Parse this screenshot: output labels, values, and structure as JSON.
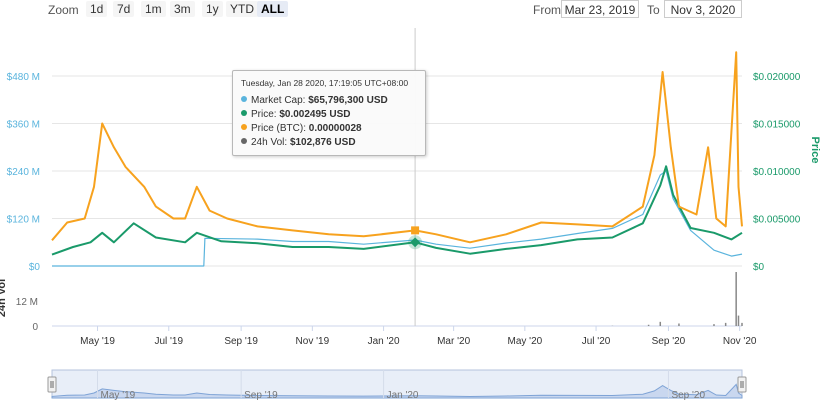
{
  "toolbar": {
    "zoom_label": "Zoom",
    "zoom_buttons": [
      "1d",
      "7d",
      "1m",
      "3m",
      "1y",
      "YTD",
      "ALL"
    ],
    "active_zoom": "ALL",
    "from_label": "From",
    "from_value": "Mar 23, 2019",
    "to_label": "To",
    "to_value": "Nov 3, 2020"
  },
  "tooltip": {
    "date": "Tuesday, Jan 28 2020, 17:19:05 UTC+08:00",
    "rows": [
      {
        "label": "Market Cap:",
        "value": "$65,796,300 USD",
        "color": "#5ab4dd"
      },
      {
        "label": "Price:",
        "value": "$0.002495 USD",
        "color": "#1a9a6a"
      },
      {
        "label": "Price (BTC):",
        "value": "0.00000028",
        "color": "#f7a21e"
      },
      {
        "label": "24h Vol:",
        "value": "$102,876 USD",
        "color": "#666666"
      }
    ]
  },
  "colors": {
    "market_cap": "#5ab4dd",
    "price_usd": "#1a9a6a",
    "price_btc": "#f7a21e",
    "volume": "#888888",
    "right_axis": "#1a9a6a",
    "left_axis": "#5ab4dd"
  },
  "chart_data": {
    "type": "line",
    "x_tick_labels": [
      "May '19",
      "Jul '19",
      "Sep '19",
      "Nov '19",
      "Jan '20",
      "Mar '20",
      "May '20",
      "Jul '20",
      "Sep '20",
      "Nov '20"
    ],
    "x_ticks": [
      "2019-05-01",
      "2019-07-01",
      "2019-09-01",
      "2019-11-01",
      "2020-01-01",
      "2020-03-01",
      "2020-05-01",
      "2020-07-01",
      "2020-09-01",
      "2020-11-01"
    ],
    "x_range": [
      "2019-03-23",
      "2020-11-03"
    ],
    "left_axis": {
      "label": "",
      "ticks": [
        "$0",
        "$120 M",
        "$240 M",
        "$360 M",
        "$480 M"
      ],
      "range": [
        0,
        480000000
      ]
    },
    "right_axis": {
      "label": "Price",
      "ticks": [
        "$0",
        "$0.005000",
        "$0.010000",
        "$0.015000",
        "$0.020000"
      ],
      "range": [
        0,
        0.02
      ]
    },
    "volume_axis": {
      "label": "24h Vol",
      "ticks": [
        "0",
        "12 M"
      ],
      "range": [
        0,
        24000000
      ]
    },
    "series": [
      {
        "name": "Market Cap",
        "axis": "left",
        "points": [
          [
            "2019-03-23",
            0
          ],
          [
            "2019-07-31",
            0
          ],
          [
            "2019-08-01",
            70000000
          ],
          [
            "2019-09-15",
            68000000
          ],
          [
            "2019-10-15",
            62000000
          ],
          [
            "2019-11-15",
            62000000
          ],
          [
            "2019-12-15",
            55000000
          ],
          [
            "2020-01-28",
            65800000
          ],
          [
            "2020-02-15",
            55000000
          ],
          [
            "2020-03-15",
            45000000
          ],
          [
            "2020-04-15",
            58000000
          ],
          [
            "2020-05-15",
            68000000
          ],
          [
            "2020-06-15",
            82000000
          ],
          [
            "2020-07-15",
            95000000
          ],
          [
            "2020-08-10",
            130000000
          ],
          [
            "2020-08-25",
            230000000
          ],
          [
            "2020-08-30",
            240000000
          ],
          [
            "2020-09-05",
            170000000
          ],
          [
            "2020-09-20",
            90000000
          ],
          [
            "2020-10-10",
            40000000
          ],
          [
            "2020-10-25",
            25000000
          ],
          [
            "2020-11-03",
            30000000
          ]
        ]
      },
      {
        "name": "Price",
        "axis": "right",
        "points": [
          [
            "2019-03-23",
            0.0012
          ],
          [
            "2019-04-10",
            0.002
          ],
          [
            "2019-04-25",
            0.0025
          ],
          [
            "2019-05-05",
            0.0035
          ],
          [
            "2019-05-15",
            0.0025
          ],
          [
            "2019-06-01",
            0.0045
          ],
          [
            "2019-06-20",
            0.003
          ],
          [
            "2019-07-15",
            0.0025
          ],
          [
            "2019-07-25",
            0.0035
          ],
          [
            "2019-08-15",
            0.0026
          ],
          [
            "2019-09-15",
            0.0024
          ],
          [
            "2019-10-15",
            0.002
          ],
          [
            "2019-11-15",
            0.002
          ],
          [
            "2019-12-15",
            0.0018
          ],
          [
            "2020-01-28",
            0.002495
          ],
          [
            "2020-02-15",
            0.0019
          ],
          [
            "2020-03-15",
            0.0013
          ],
          [
            "2020-04-15",
            0.0018
          ],
          [
            "2020-05-15",
            0.0022
          ],
          [
            "2020-06-15",
            0.0028
          ],
          [
            "2020-07-15",
            0.003
          ],
          [
            "2020-08-10",
            0.0045
          ],
          [
            "2020-08-25",
            0.0085
          ],
          [
            "2020-08-30",
            0.0105
          ],
          [
            "2020-09-05",
            0.0075
          ],
          [
            "2020-09-20",
            0.004
          ],
          [
            "2020-10-10",
            0.0035
          ],
          [
            "2020-10-25",
            0.0028
          ],
          [
            "2020-11-03",
            0.0035
          ]
        ]
      },
      {
        "name": "Price (BTC)",
        "axis": "left",
        "points": [
          [
            "2019-03-23",
            65000000
          ],
          [
            "2019-04-05",
            110000000
          ],
          [
            "2019-04-20",
            120000000
          ],
          [
            "2019-04-28",
            200000000
          ],
          [
            "2019-05-05",
            360000000
          ],
          [
            "2019-05-15",
            300000000
          ],
          [
            "2019-05-25",
            250000000
          ],
          [
            "2019-06-10",
            200000000
          ],
          [
            "2019-06-20",
            150000000
          ],
          [
            "2019-07-05",
            120000000
          ],
          [
            "2019-07-15",
            120000000
          ],
          [
            "2019-07-25",
            200000000
          ],
          [
            "2019-08-05",
            140000000
          ],
          [
            "2019-08-20",
            120000000
          ],
          [
            "2019-09-15",
            100000000
          ],
          [
            "2019-10-15",
            90000000
          ],
          [
            "2019-11-15",
            80000000
          ],
          [
            "2019-12-15",
            75000000
          ],
          [
            "2020-01-28",
            90000000
          ],
          [
            "2020-02-15",
            80000000
          ],
          [
            "2020-03-15",
            60000000
          ],
          [
            "2020-04-15",
            80000000
          ],
          [
            "2020-05-15",
            110000000
          ],
          [
            "2020-06-15",
            105000000
          ],
          [
            "2020-07-15",
            100000000
          ],
          [
            "2020-08-10",
            150000000
          ],
          [
            "2020-08-20",
            280000000
          ],
          [
            "2020-08-27",
            490000000
          ],
          [
            "2020-09-03",
            300000000
          ],
          [
            "2020-09-10",
            150000000
          ],
          [
            "2020-09-25",
            130000000
          ],
          [
            "2020-10-05",
            300000000
          ],
          [
            "2020-10-12",
            120000000
          ],
          [
            "2020-10-20",
            100000000
          ],
          [
            "2020-10-29",
            540000000
          ],
          [
            "2020-10-31",
            200000000
          ],
          [
            "2020-11-03",
            100000000
          ]
        ]
      },
      {
        "name": "24h Vol",
        "axis": "volume",
        "points": [
          [
            "2019-03-23",
            0
          ],
          [
            "2020-07-15",
            100000
          ],
          [
            "2020-08-15",
            600000
          ],
          [
            "2020-08-25",
            2000000
          ],
          [
            "2020-09-10",
            1200000
          ],
          [
            "2020-10-10",
            900000
          ],
          [
            "2020-10-20",
            1500000
          ],
          [
            "2020-10-29",
            26000000
          ],
          [
            "2020-10-31",
            5000000
          ],
          [
            "2020-11-03",
            1500000
          ]
        ]
      }
    ],
    "hover_date": "2020-01-28",
    "navigator_tick_labels": [
      "May '19",
      "Sep '19",
      "Jan '20",
      "Sep '20"
    ],
    "navigator_ticks": [
      "2019-05-01",
      "2019-09-01",
      "2020-01-01",
      "2020-09-01"
    ],
    "grid": true
  }
}
